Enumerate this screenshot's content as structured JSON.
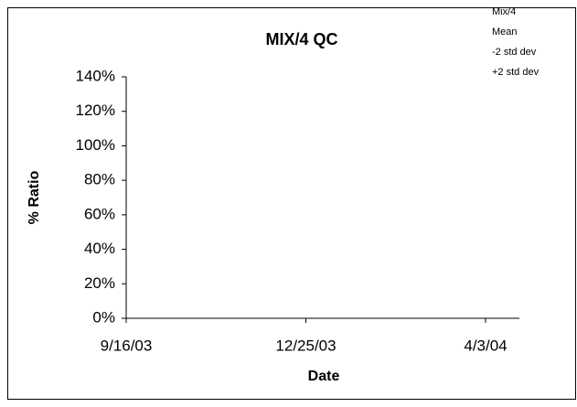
{
  "chart_data": {
    "type": "line",
    "title": "MIX/4 QC",
    "x_label": "Date",
    "y_label": "% Ratio",
    "x": [],
    "series": [
      {
        "name": "Mix/4",
        "values": []
      },
      {
        "name": "Mean",
        "values": []
      },
      {
        "name": "-2 std dev",
        "values": []
      },
      {
        "name": "+2 std dev",
        "values": []
      }
    ],
    "xticks": [
      "9/16/03",
      "12/25/03",
      "4/3/04"
    ],
    "ylim": [
      0,
      140
    ],
    "yticks": [
      {
        "value": 0,
        "label": "0%"
      },
      {
        "value": 20,
        "label": "20%"
      },
      {
        "value": 40,
        "label": "40%"
      },
      {
        "value": 60,
        "label": "60%"
      },
      {
        "value": 80,
        "label": "80%"
      },
      {
        "value": 100,
        "label": "100%"
      },
      {
        "value": 120,
        "label": "120%"
      },
      {
        "value": 140,
        "label": "140%"
      }
    ],
    "legend": "top-right"
  }
}
